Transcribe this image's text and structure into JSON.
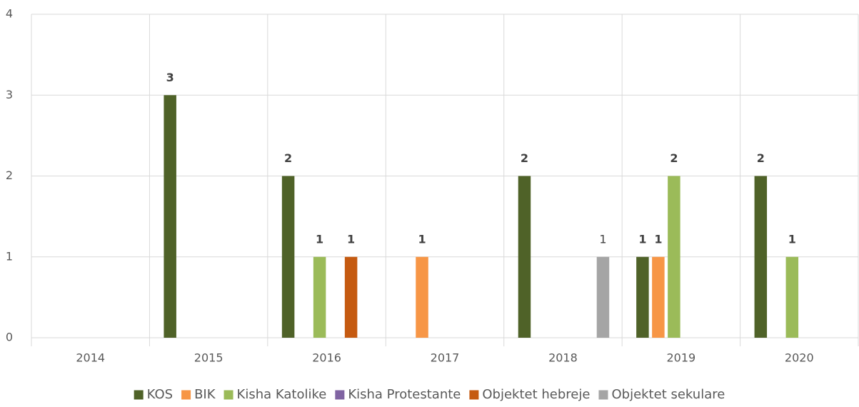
{
  "chart_data": {
    "type": "bar",
    "categories": [
      "2014",
      "2015",
      "2016",
      "2017",
      "2018",
      "2019",
      "2020"
    ],
    "series": [
      {
        "name": "KOS",
        "color": "#4f6228",
        "values": [
          0,
          3,
          2,
          0,
          2,
          1,
          2
        ],
        "label_bold": true
      },
      {
        "name": "BIK",
        "color": "#f79646",
        "values": [
          0,
          0,
          0,
          1,
          0,
          1,
          0
        ],
        "label_bold": true
      },
      {
        "name": "Kisha Katolike",
        "color": "#9bbb59",
        "values": [
          0,
          0,
          1,
          0,
          0,
          2,
          1
        ],
        "label_bold": true
      },
      {
        "name": "Kisha Protestante",
        "color": "#8064a2",
        "values": [
          0,
          0,
          0,
          0,
          0,
          0,
          0
        ],
        "label_bold": true
      },
      {
        "name": "Objektet hebreje",
        "color": "#c55a11",
        "values": [
          0,
          0,
          1,
          0,
          0,
          0,
          0
        ],
        "label_bold": true
      },
      {
        "name": "Objektet sekulare",
        "color": "#a5a5a5",
        "values": [
          0,
          0,
          0,
          0,
          1,
          0,
          0
        ],
        "label_bold": false
      }
    ],
    "ylim": [
      0,
      4
    ],
    "yticks": [
      0,
      1,
      2,
      3,
      4
    ],
    "grid": true,
    "legend": "bottom"
  }
}
